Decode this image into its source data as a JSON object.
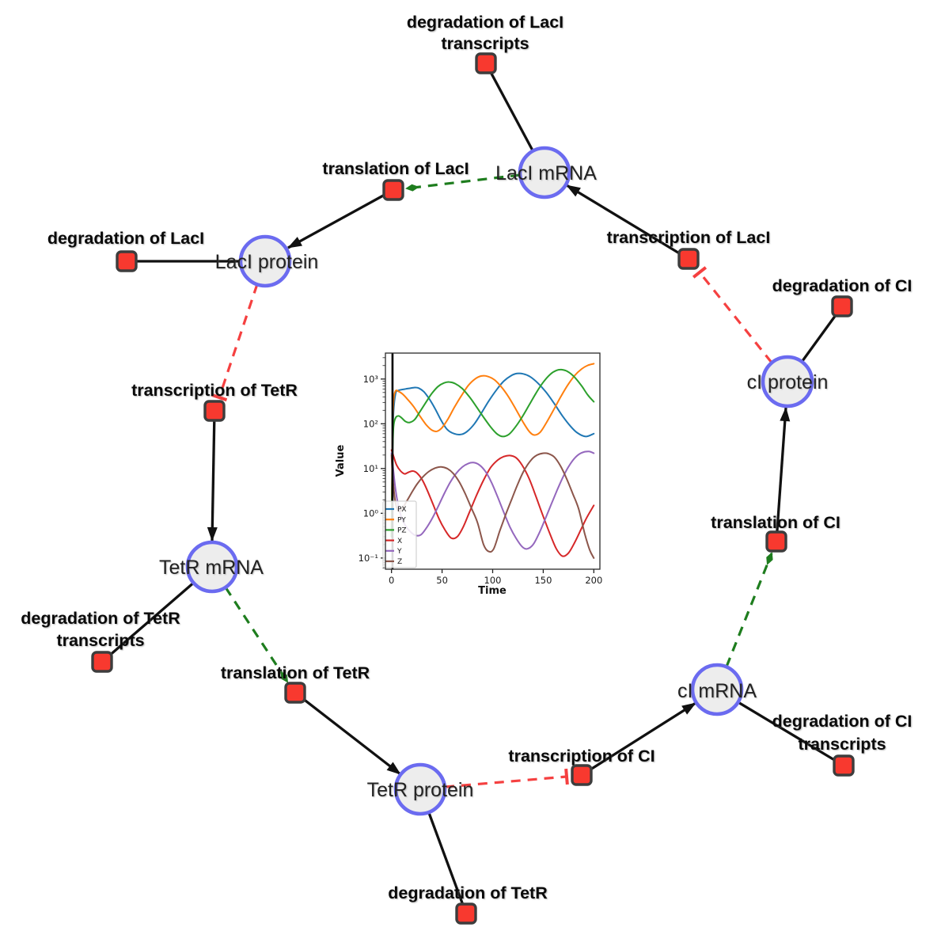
{
  "diagram": {
    "species": {
      "laci_mrna": {
        "label": "LacI mRNA"
      },
      "laci_protein": {
        "label": "LacI protein"
      },
      "tetr_mrna": {
        "label": "TetR mRNA"
      },
      "tetr_protein": {
        "label": "TetR protein"
      },
      "ci_mrna": {
        "label": "cI mRNA"
      },
      "ci_protein": {
        "label": "cI protein"
      }
    },
    "reactions": {
      "deg_laci_tx": {
        "lines": [
          "degradation of LacI",
          "transcripts"
        ]
      },
      "transl_laci": {
        "lines": [
          "translation of LacI"
        ]
      },
      "deg_laci": {
        "lines": [
          "degradation of LacI"
        ]
      },
      "tx_laci": {
        "lines": [
          "transcription of LacI"
        ]
      },
      "deg_ci": {
        "lines": [
          "degradation of CI"
        ]
      },
      "tx_tetr": {
        "lines": [
          "transcription of TetR"
        ]
      },
      "deg_tetr_tx": {
        "lines": [
          "degradation of TetR",
          "transcripts"
        ]
      },
      "transl_tetr": {
        "lines": [
          "translation of TetR"
        ]
      },
      "tx_ci": {
        "lines": [
          "transcription of CI"
        ]
      },
      "deg_ci_tx": {
        "lines": [
          "degradation of CI",
          "transcripts"
        ]
      },
      "transl_ci": {
        "lines": [
          "translation of CI"
        ]
      },
      "deg_tetr": {
        "lines": [
          "degradation of TetR"
        ]
      }
    },
    "edges": [
      {
        "from": "laci_mrna",
        "to": "deg_laci_tx",
        "type": "substrate"
      },
      {
        "from": "laci_protein",
        "to": "deg_laci",
        "type": "substrate"
      },
      {
        "from": "ci_protein",
        "to": "deg_ci",
        "type": "substrate"
      },
      {
        "from": "tetr_mrna",
        "to": "deg_tetr_tx",
        "type": "substrate"
      },
      {
        "from": "tetr_protein",
        "to": "deg_tetr",
        "type": "substrate"
      },
      {
        "from": "ci_mrna",
        "to": "deg_ci_tx",
        "type": "substrate"
      },
      {
        "from": "transl_laci",
        "to": "laci_protein",
        "type": "product"
      },
      {
        "from": "tx_laci",
        "to": "laci_mrna",
        "type": "product"
      },
      {
        "from": "tx_tetr",
        "to": "tetr_mrna",
        "type": "product"
      },
      {
        "from": "transl_tetr",
        "to": "tetr_protein",
        "type": "product"
      },
      {
        "from": "tx_ci",
        "to": "ci_mrna",
        "type": "product"
      },
      {
        "from": "transl_ci",
        "to": "ci_protein",
        "type": "product"
      },
      {
        "from": "laci_mrna",
        "to": "transl_laci",
        "type": "modifier"
      },
      {
        "from": "tetr_mrna",
        "to": "transl_tetr",
        "type": "modifier"
      },
      {
        "from": "ci_mrna",
        "to": "transl_ci",
        "type": "modifier"
      },
      {
        "from": "laci_protein",
        "to": "tx_tetr",
        "type": "inhibition"
      },
      {
        "from": "tetr_protein",
        "to": "tx_ci",
        "type": "inhibition"
      },
      {
        "from": "ci_protein",
        "to": "tx_laci",
        "type": "inhibition"
      }
    ],
    "colors": {
      "species_fill": "#ededed",
      "species_border": "#6b6bf0",
      "reaction_fill": "#f8392f",
      "reaction_border": "#3d3d3d",
      "substrate_edge": "#111111",
      "product_edge": "#111111",
      "modifier_edge": "#1e7d1e",
      "inhibition_edge": "#f54040"
    }
  },
  "chart_data": {
    "type": "line",
    "xlabel": "Time",
    "ylabel": "Value",
    "y_scale": "log",
    "xlim": [
      -6,
      206
    ],
    "ylog10_lim": [
      -1.25,
      3.58
    ],
    "x_ticks": [
      0,
      50,
      100,
      150,
      200
    ],
    "y_tick_values": [
      0.1,
      1,
      10,
      100,
      1000
    ],
    "y_tick_labels": [
      "10⁻¹",
      "10⁰",
      "10¹",
      "10²",
      "10³"
    ],
    "event_line_x": 1,
    "legend_position": "lower left",
    "legend": [
      "PX",
      "PY",
      "PZ",
      "X",
      "Y",
      "Z"
    ],
    "series": [
      {
        "name": "PX",
        "color": "#1f77b4",
        "points": [
          [
            0,
            0.3
          ],
          [
            1,
            25
          ],
          [
            2,
            180
          ],
          [
            4,
            470
          ],
          [
            6,
            545
          ],
          [
            10,
            580
          ],
          [
            14,
            600
          ],
          [
            18,
            620
          ],
          [
            23,
            645
          ],
          [
            27,
            625
          ],
          [
            32,
            520
          ],
          [
            37,
            370
          ],
          [
            43,
            220
          ],
          [
            49,
            120
          ],
          [
            55,
            75
          ],
          [
            62,
            60
          ],
          [
            69,
            58
          ],
          [
            75,
            68
          ],
          [
            82,
            100
          ],
          [
            89,
            175
          ],
          [
            96,
            320
          ],
          [
            104,
            580
          ],
          [
            111,
            900
          ],
          [
            118,
            1180
          ],
          [
            124,
            1330
          ],
          [
            130,
            1310
          ],
          [
            137,
            1130
          ],
          [
            145,
            800
          ],
          [
            153,
            500
          ],
          [
            161,
            280
          ],
          [
            169,
            150
          ],
          [
            177,
            88
          ],
          [
            184,
            62
          ],
          [
            192,
            52
          ],
          [
            200,
            60
          ]
        ]
      },
      {
        "name": "PY",
        "color": "#ff7f0e",
        "points": [
          [
            0,
            0.3
          ],
          [
            1,
            55
          ],
          [
            2,
            320
          ],
          [
            4,
            540
          ],
          [
            7,
            530
          ],
          [
            11,
            460
          ],
          [
            16,
            350
          ],
          [
            22,
            240
          ],
          [
            28,
            150
          ],
          [
            34,
            97
          ],
          [
            40,
            72
          ],
          [
            45,
            68
          ],
          [
            50,
            82
          ],
          [
            56,
            130
          ],
          [
            62,
            230
          ],
          [
            69,
            420
          ],
          [
            76,
            720
          ],
          [
            83,
            1020
          ],
          [
            89,
            1170
          ],
          [
            95,
            1150
          ],
          [
            102,
            950
          ],
          [
            109,
            650
          ],
          [
            116,
            390
          ],
          [
            123,
            210
          ],
          [
            130,
            110
          ],
          [
            136,
            68
          ],
          [
            141,
            56
          ],
          [
            147,
            65
          ],
          [
            153,
            105
          ],
          [
            160,
            200
          ],
          [
            167,
            390
          ],
          [
            174,
            720
          ],
          [
            181,
            1190
          ],
          [
            188,
            1680
          ],
          [
            194,
            2020
          ],
          [
            200,
            2200
          ]
        ]
      },
      {
        "name": "PZ",
        "color": "#2ca02c",
        "points": [
          [
            0,
            0.3
          ],
          [
            1,
            18
          ],
          [
            2,
            85
          ],
          [
            4,
            135
          ],
          [
            7,
            150
          ],
          [
            10,
            135
          ],
          [
            14,
            112
          ],
          [
            18,
            107
          ],
          [
            23,
            125
          ],
          [
            28,
            185
          ],
          [
            34,
            300
          ],
          [
            40,
            480
          ],
          [
            46,
            680
          ],
          [
            52,
            820
          ],
          [
            57,
            860
          ],
          [
            63,
            790
          ],
          [
            70,
            610
          ],
          [
            77,
            400
          ],
          [
            84,
            240
          ],
          [
            91,
            140
          ],
          [
            98,
            85
          ],
          [
            104,
            60
          ],
          [
            110,
            52
          ],
          [
            116,
            58
          ],
          [
            122,
            82
          ],
          [
            129,
            140
          ],
          [
            136,
            260
          ],
          [
            143,
            490
          ],
          [
            150,
            850
          ],
          [
            157,
            1280
          ],
          [
            163,
            1560
          ],
          [
            168,
            1620
          ],
          [
            174,
            1480
          ],
          [
            181,
            1100
          ],
          [
            188,
            700
          ],
          [
            194,
            440
          ],
          [
            200,
            310
          ]
        ]
      },
      {
        "name": "X",
        "color": "#d62728",
        "points": [
          [
            0,
            26
          ],
          [
            2,
            19
          ],
          [
            5,
            12
          ],
          [
            9,
            8.8
          ],
          [
            13,
            7.6
          ],
          [
            17,
            8.3
          ],
          [
            21,
            8.8
          ],
          [
            25,
            8
          ],
          [
            30,
            5.8
          ],
          [
            35,
            3.4
          ],
          [
            41,
            1.6
          ],
          [
            47,
            0.75
          ],
          [
            53,
            0.42
          ],
          [
            59,
            0.28
          ],
          [
            65,
            0.3
          ],
          [
            71,
            0.5
          ],
          [
            77,
            1.05
          ],
          [
            84,
            2.5
          ],
          [
            91,
            5.5
          ],
          [
            98,
            10.5
          ],
          [
            105,
            15.5
          ],
          [
            111,
            18.5
          ],
          [
            117,
            19.5
          ],
          [
            123,
            17.5
          ],
          [
            129,
            12
          ],
          [
            136,
            6
          ],
          [
            143,
            2.3
          ],
          [
            150,
            0.85
          ],
          [
            157,
            0.33
          ],
          [
            163,
            0.16
          ],
          [
            169,
            0.11
          ],
          [
            175,
            0.13
          ],
          [
            181,
            0.22
          ],
          [
            187,
            0.42
          ],
          [
            193,
            0.8
          ],
          [
            200,
            1.5
          ]
        ]
      },
      {
        "name": "Y",
        "color": "#9467bd",
        "points": [
          [
            0,
            22
          ],
          [
            2,
            8.5
          ],
          [
            4,
            3.4
          ],
          [
            7,
            1.4
          ],
          [
            10,
            0.8
          ],
          [
            14,
            0.52
          ],
          [
            19,
            0.38
          ],
          [
            24,
            0.32
          ],
          [
            29,
            0.33
          ],
          [
            34,
            0.45
          ],
          [
            40,
            0.75
          ],
          [
            46,
            1.4
          ],
          [
            52,
            2.7
          ],
          [
            58,
            4.9
          ],
          [
            64,
            7.8
          ],
          [
            70,
            10.8
          ],
          [
            76,
            13
          ],
          [
            81,
            13.6
          ],
          [
            87,
            12
          ],
          [
            93,
            8.5
          ],
          [
            99,
            4.8
          ],
          [
            105,
            2.3
          ],
          [
            111,
            1.05
          ],
          [
            117,
            0.5
          ],
          [
            123,
            0.28
          ],
          [
            129,
            0.18
          ],
          [
            134,
            0.16
          ],
          [
            140,
            0.2
          ],
          [
            146,
            0.36
          ],
          [
            152,
            0.75
          ],
          [
            158,
            1.6
          ],
          [
            164,
            3.4
          ],
          [
            170,
            6.8
          ],
          [
            176,
            12
          ],
          [
            182,
            18
          ],
          [
            188,
            22.5
          ],
          [
            195,
            24
          ],
          [
            200,
            22
          ]
        ]
      },
      {
        "name": "Z",
        "color": "#8c564b",
        "points": [
          [
            0,
            20
          ],
          [
            1,
            7.5
          ],
          [
            3,
            2.4
          ],
          [
            5,
            1.35
          ],
          [
            8,
            1.1
          ],
          [
            11,
            1.3
          ],
          [
            15,
            1.85
          ],
          [
            20,
            2.9
          ],
          [
            25,
            4.4
          ],
          [
            31,
            6.5
          ],
          [
            37,
            8.6
          ],
          [
            43,
            10.2
          ],
          [
            49,
            10.9
          ],
          [
            55,
            10
          ],
          [
            61,
            7.8
          ],
          [
            67,
            5
          ],
          [
            73,
            2.7
          ],
          [
            79,
            1.3
          ],
          [
            85,
            0.62
          ],
          [
            91,
            0.2
          ],
          [
            96,
            0.14
          ],
          [
            101,
            0.16
          ],
          [
            107,
            0.4
          ],
          [
            113,
            0.95
          ],
          [
            119,
            2.1
          ],
          [
            125,
            4.6
          ],
          [
            131,
            9
          ],
          [
            138,
            15.5
          ],
          [
            144,
            20
          ],
          [
            150,
            22
          ],
          [
            155,
            21.5
          ],
          [
            161,
            18
          ],
          [
            167,
            11.5
          ],
          [
            173,
            6
          ],
          [
            179,
            2.8
          ],
          [
            185,
            1.25
          ],
          [
            191,
            0.35
          ],
          [
            196,
            0.15
          ],
          [
            200,
            0.1
          ]
        ]
      }
    ]
  }
}
